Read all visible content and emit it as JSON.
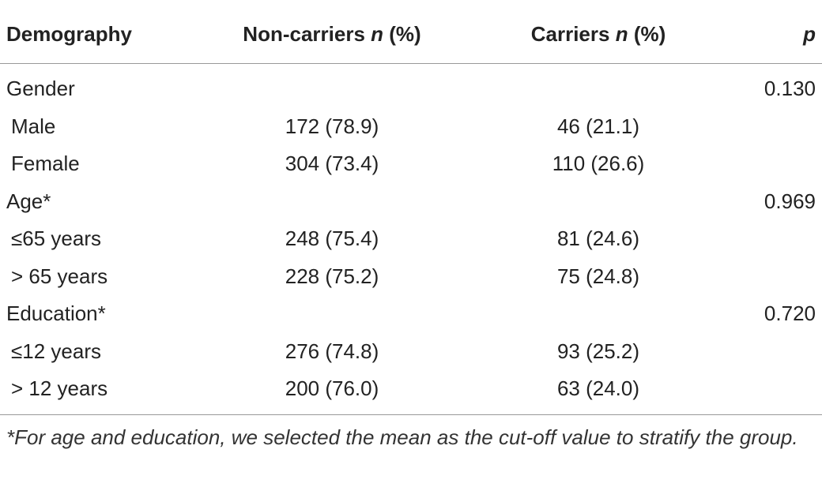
{
  "table": {
    "header": [
      [
        "Demography"
      ],
      [
        "Non-carriers",
        "n",
        "(%)"
      ],
      [
        "Carriers",
        "n",
        "(%)"
      ],
      [
        "",
        "p"
      ]
    ],
    "rows": [
      [
        "Gender",
        null,
        null,
        "0.130"
      ],
      [
        "Male",
        "172 (78.9)",
        "46 (21.1)",
        null
      ],
      [
        "Female",
        "304 (73.4)",
        "110 (26.6)",
        null
      ],
      [
        "Age*",
        null,
        null,
        "0.969"
      ],
      [
        "≤65 years",
        "248 (75.4)",
        "81 (24.6)",
        null
      ],
      [
        "> 65 years",
        "228 (75.2)",
        "75 (24.8)",
        null
      ],
      [
        "Education*",
        null,
        null,
        "0.720"
      ],
      [
        "≤12 years",
        "276 (74.8)",
        "93 (25.2)",
        null
      ],
      [
        "> 12 years",
        "200 (76.0)",
        "63 (24.0)",
        null
      ]
    ],
    "footnote": "*For age and education, we selected the mean as the cut-off value to stratify the group."
  }
}
